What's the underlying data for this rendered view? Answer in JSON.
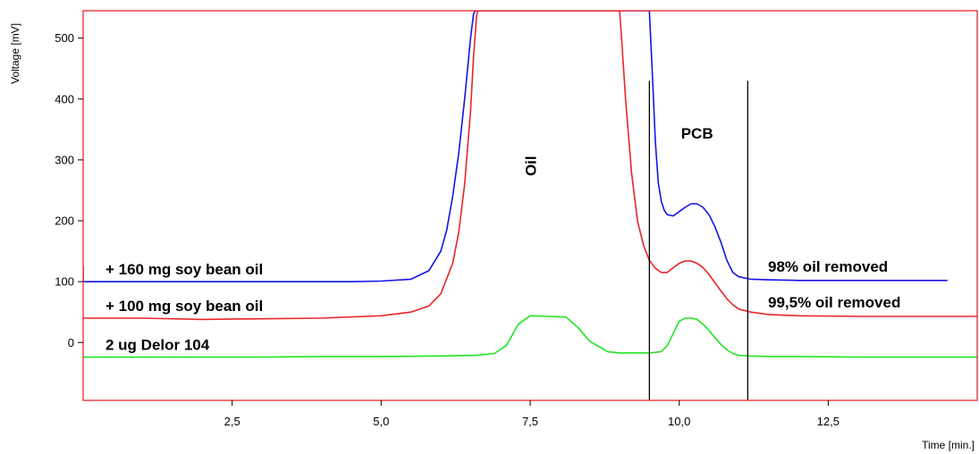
{
  "chart_data": {
    "type": "line",
    "xlabel": "Time [min.]",
    "ylabel": "Voltage [mV]",
    "xlim": [
      0.0,
      15.0
    ],
    "ylim": [
      -95,
      545
    ],
    "x_ticks": [
      "2,5",
      "5,0",
      "7,5",
      "10,0",
      "12,5"
    ],
    "x_tick_values": [
      2.5,
      5.0,
      7.5,
      10.0,
      12.5
    ],
    "y_ticks": [
      "0",
      "100",
      "200",
      "300",
      "400",
      "500"
    ],
    "y_tick_values": [
      0,
      100,
      200,
      300,
      400,
      500
    ],
    "grid": false,
    "frame_color": "#e8262a",
    "series": [
      {
        "label": "+ 160 mg soy bean oil",
        "end_label": "98% oil removed",
        "color": "#1414e6",
        "x": [
          0.0,
          0.0,
          1.0,
          2.0,
          3.0,
          4.0,
          4.5,
          5.0,
          5.5,
          5.8,
          6.0,
          6.1,
          6.2,
          6.3,
          6.4,
          6.45,
          6.5,
          6.55,
          6.58,
          9.5,
          9.55,
          9.6,
          9.65,
          9.7,
          9.75,
          9.8,
          9.9,
          10.0,
          10.1,
          10.2,
          10.3,
          10.4,
          10.5,
          10.6,
          10.7,
          10.8,
          10.9,
          11.0,
          11.2,
          11.5,
          12.0,
          13.0,
          14.0,
          14.5
        ],
        "y": [
          125,
          100,
          100,
          100,
          100,
          100,
          100,
          101,
          104,
          118,
          150,
          185,
          240,
          310,
          400,
          450,
          500,
          540,
          545,
          545,
          440,
          330,
          262,
          232,
          217,
          210,
          208,
          215,
          222,
          228,
          228,
          222,
          210,
          190,
          165,
          135,
          115,
          108,
          104,
          103,
          102,
          102,
          102,
          102
        ]
      },
      {
        "label": "+ 100 mg soy bean oil",
        "end_label": "99,5% oil removed",
        "color": "#e8262a",
        "x": [
          0.0,
          1.0,
          2.0,
          3.0,
          4.0,
          5.0,
          5.5,
          5.8,
          6.0,
          6.2,
          6.3,
          6.4,
          6.5,
          6.55,
          6.6,
          6.62,
          9.0,
          9.02,
          9.1,
          9.2,
          9.3,
          9.4,
          9.5,
          9.6,
          9.7,
          9.8,
          9.9,
          10.0,
          10.1,
          10.2,
          10.3,
          10.4,
          10.5,
          10.6,
          10.7,
          10.8,
          10.9,
          11.0,
          11.2,
          11.5,
          12.0,
          13.0,
          14.0,
          15.0
        ],
        "y": [
          40,
          40,
          38,
          39,
          40,
          44,
          50,
          60,
          80,
          130,
          180,
          260,
          380,
          470,
          535,
          545,
          545,
          520,
          400,
          280,
          200,
          160,
          135,
          122,
          115,
          115,
          123,
          130,
          134,
          134,
          130,
          123,
          112,
          98,
          85,
          72,
          62,
          55,
          50,
          46,
          44,
          43,
          43,
          43
        ]
      },
      {
        "label": "2 ug Delor 104",
        "end_label": "",
        "color": "#22e422",
        "x": [
          0.0,
          1.0,
          2.0,
          3.0,
          4.0,
          5.0,
          6.0,
          6.6,
          6.9,
          7.1,
          7.3,
          7.5,
          7.8,
          8.1,
          8.3,
          8.5,
          8.8,
          9.0,
          9.5,
          9.7,
          9.8,
          9.9,
          10.0,
          10.1,
          10.2,
          10.3,
          10.4,
          10.5,
          10.6,
          10.7,
          10.8,
          10.9,
          11.0,
          11.2,
          11.5,
          12.0,
          13.0,
          14.0,
          15.0
        ],
        "y": [
          -24,
          -24,
          -24,
          -24,
          -23,
          -23,
          -22,
          -21,
          -18,
          -5,
          30,
          44,
          43,
          42,
          25,
          2,
          -15,
          -17,
          -17,
          -15,
          -5,
          15,
          35,
          40,
          40,
          38,
          30,
          20,
          8,
          -3,
          -12,
          -18,
          -21,
          -22,
          -23,
          -23,
          -24,
          -24,
          -24
        ]
      }
    ],
    "vertical_markers": [
      {
        "x": 9.5,
        "y_range": [
          -95,
          430
        ]
      },
      {
        "x": 11.15,
        "y_range": [
          -95,
          430
        ]
      }
    ],
    "annotations": [
      {
        "text": "Oil",
        "x": 7.6,
        "y": 290,
        "rotation": -90
      },
      {
        "text": "PCB",
        "x": 10.3,
        "y": 335,
        "rotation": 0
      }
    ]
  }
}
